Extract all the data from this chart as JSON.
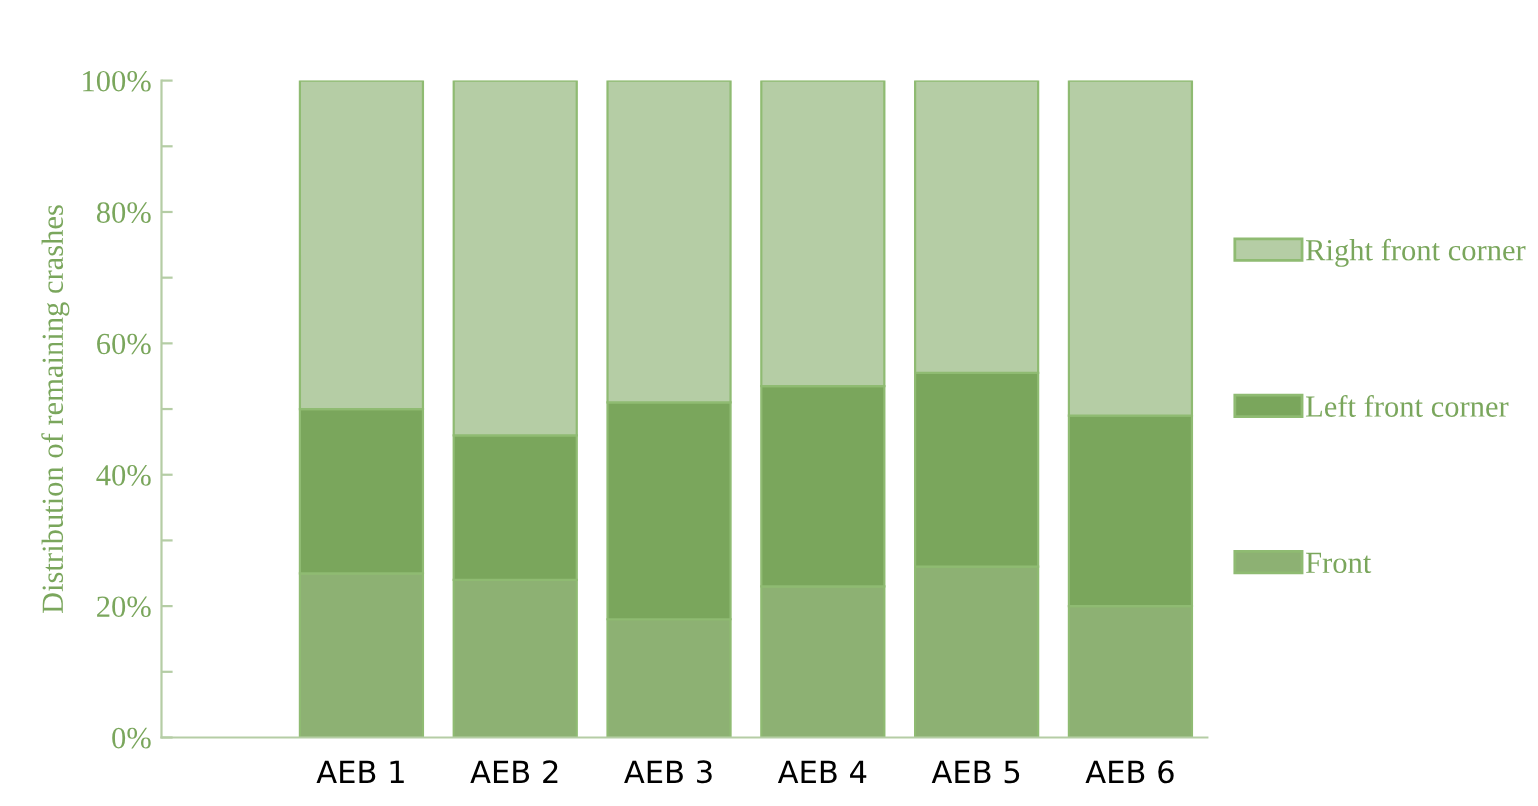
{
  "chart_data": {
    "type": "bar",
    "stacked": true,
    "ylabel": "Distribution of remaining crashes",
    "categories": [
      "AEB 1",
      "AEB 2",
      "AEB 3",
      "AEB 4",
      "AEB 5",
      "AEB 6"
    ],
    "series": [
      {
        "name": "Front",
        "color": "#8db173",
        "values": [
          25,
          24,
          18,
          23,
          26,
          20
        ]
      },
      {
        "name": "Left front corner",
        "color": "#7aa65c",
        "values": [
          25,
          22,
          33,
          30.5,
          29.5,
          29
        ]
      },
      {
        "name": "Right front corner",
        "color": "#b5cda5",
        "values": [
          50,
          54,
          49,
          46.5,
          44.5,
          51
        ]
      }
    ],
    "ylim": [
      0,
      100
    ],
    "yticks": [
      {
        "value": 0,
        "label": "0%"
      },
      {
        "value": 10,
        "label": null
      },
      {
        "value": 20,
        "label": "20%"
      },
      {
        "value": 30,
        "label": null
      },
      {
        "value": 40,
        "label": "40%"
      },
      {
        "value": 50,
        "label": null
      },
      {
        "value": 60,
        "label": "60%"
      },
      {
        "value": 70,
        "label": null
      },
      {
        "value": 80,
        "label": "80%"
      },
      {
        "value": 90,
        "label": null
      },
      {
        "value": 100,
        "label": "100%"
      }
    ],
    "grid": false,
    "legend": "right"
  }
}
